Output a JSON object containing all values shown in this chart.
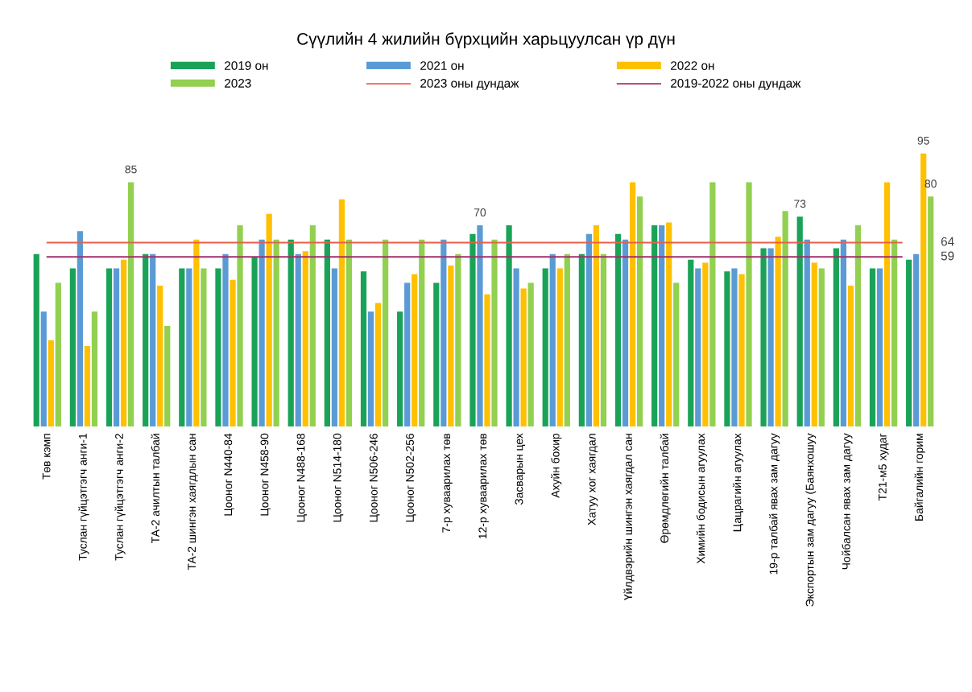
{
  "chart_data": {
    "type": "bar",
    "title": "Сүүлийн 4 жилийн бүрхцийн харьцуулсан үр дүн",
    "categories": [
      "Төв кэмп",
      "Туслан гүйцэтгэгч анги-1",
      "Туслан гүйцэтгэгч анги-2",
      "ТА-2 ачилтын талбай",
      "ТА-2 шингэн хаягдлын сан",
      "Цооног N440-84",
      "Цооног N458-90",
      "Цооног N488-168",
      "Цооног N514-180",
      "Цооног N506-246",
      "Цооног N502-256",
      "7-р хуваарилах төв",
      "12-р хуваарилах төв",
      "Засварын цех",
      "Ахуйн бохир",
      "Хатуу хог хаягдал",
      "Үйлдвэрийн шингэн хаягдал сан",
      "Өрөмдлөгийн талбай",
      "Химийн бодисын агуулах",
      "Цацрагийн агуулах",
      "19-р талбай явах зам дагуу",
      "Экспортын зам дагуу (Баянхошуу",
      "Чойбалсан явах зам дагуу",
      "Т21-м5 худаг",
      "Байгалийн горим"
    ],
    "series": [
      {
        "name": "2019 он",
        "color": "#1aa358",
        "values": [
          60,
          55,
          55,
          60,
          55,
          55,
          59,
          65,
          65,
          54,
          40,
          50,
          67,
          70,
          55,
          60,
          67,
          70,
          58,
          54,
          62,
          73,
          62,
          55,
          58
        ],
        "value_labels": [
          null,
          null,
          null,
          null,
          null,
          null,
          null,
          null,
          null,
          null,
          null,
          null,
          null,
          null,
          null,
          null,
          null,
          null,
          null,
          null,
          null,
          "73",
          null,
          null,
          null
        ]
      },
      {
        "name": "2021 он",
        "color": "#5b9bd5",
        "values": [
          40,
          68,
          55,
          60,
          55,
          60,
          65,
          60,
          55,
          40,
          50,
          65,
          70,
          55,
          60,
          67,
          65,
          70,
          55,
          55,
          62,
          65,
          65,
          55,
          60
        ],
        "value_labels": [
          null,
          null,
          null,
          null,
          null,
          null,
          null,
          null,
          null,
          null,
          null,
          null,
          "70",
          null,
          null,
          null,
          null,
          null,
          null,
          null,
          null,
          null,
          null,
          null,
          null
        ]
      },
      {
        "name": "2022 он",
        "color": "#ffc000",
        "values": [
          30,
          28,
          58,
          49,
          65,
          51,
          74,
          61,
          79,
          43,
          53,
          56,
          46,
          48,
          55,
          70,
          85,
          71,
          57,
          53,
          66,
          57,
          49,
          85,
          95
        ],
        "value_labels": [
          null,
          null,
          null,
          null,
          null,
          null,
          null,
          null,
          null,
          null,
          null,
          null,
          null,
          null,
          null,
          null,
          null,
          null,
          null,
          null,
          null,
          null,
          null,
          null,
          "95"
        ]
      },
      {
        "name": "2023",
        "color": "#92d050",
        "values": [
          50,
          40,
          85,
          35,
          55,
          70,
          65,
          70,
          65,
          65,
          65,
          60,
          65,
          50,
          60,
          60,
          80,
          50,
          85,
          85,
          75,
          55,
          70,
          65,
          80
        ],
        "value_labels": [
          null,
          null,
          "85",
          null,
          null,
          null,
          null,
          null,
          null,
          null,
          null,
          null,
          null,
          null,
          null,
          null,
          null,
          null,
          null,
          null,
          null,
          null,
          null,
          null,
          "80"
        ]
      }
    ],
    "ref_lines": [
      {
        "axis": "y",
        "value": 64,
        "label": "2023 оны дундаж",
        "color": "#e8604c"
      },
      {
        "axis": "y",
        "value": 59,
        "label": "2019-2022 оны дундаж",
        "color": "#a0306a"
      }
    ],
    "annotations": [
      "64",
      "59"
    ],
    "legend": "top",
    "grid": false
  }
}
